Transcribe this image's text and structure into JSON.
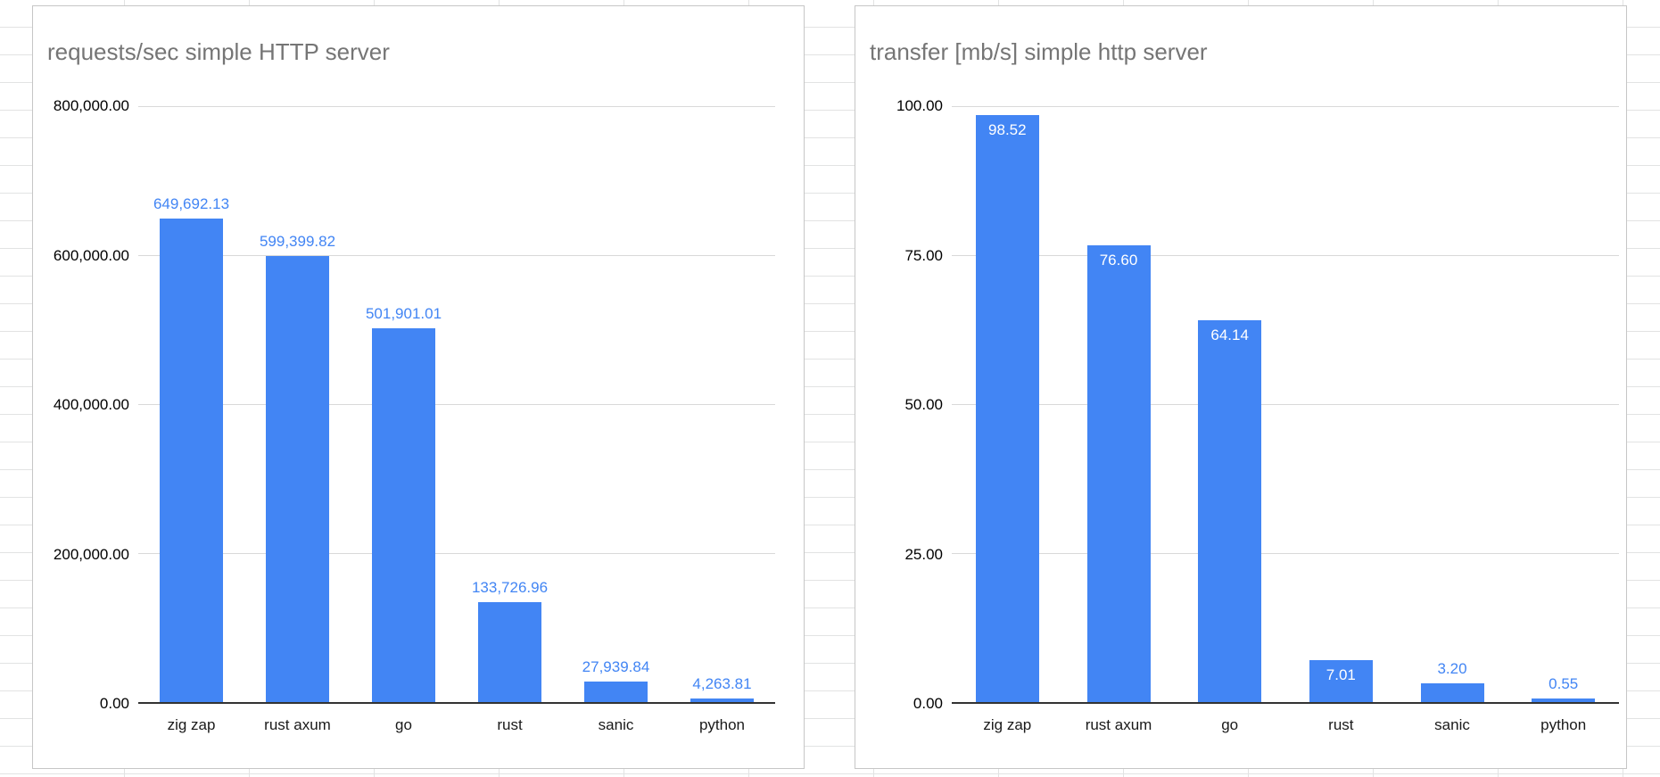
{
  "chart_data": [
    {
      "type": "bar",
      "title": "requests/sec simple HTTP server",
      "categories": [
        "zig zap",
        "rust axum",
        "go",
        "rust",
        "sanic",
        "python"
      ],
      "values": [
        649692.13,
        599399.82,
        501901.01,
        133726.96,
        27939.84,
        4263.81
      ],
      "value_labels": [
        "649,692.13",
        "599,399.82",
        "501,901.01",
        "133,726.96",
        "27,939.84",
        "4,263.81"
      ],
      "label_placement": [
        "above",
        "above",
        "above",
        "above",
        "above",
        "above"
      ],
      "ylim": [
        0,
        800000
      ],
      "y_ticks": [
        {
          "value": 800000,
          "label": "800,000.00"
        },
        {
          "value": 600000,
          "label": "600,000.00"
        },
        {
          "value": 400000,
          "label": "400,000.00"
        },
        {
          "value": 200000,
          "label": "200,000.00"
        },
        {
          "value": 0,
          "label": "0.00"
        }
      ],
      "xlabel": "",
      "ylabel": "",
      "grid": true,
      "legend": "none",
      "bar_color": "#4285f4",
      "label_color": "#4285f4"
    },
    {
      "type": "bar",
      "title": "transfer [mb/s] simple http server",
      "categories": [
        "zig zap",
        "rust axum",
        "go",
        "rust",
        "sanic",
        "python"
      ],
      "values": [
        98.52,
        76.6,
        64.14,
        7.01,
        3.2,
        0.55
      ],
      "value_labels": [
        "98.52",
        "76.60",
        "64.14",
        "7.01",
        "3.20",
        "0.55"
      ],
      "label_placement": [
        "inside",
        "inside",
        "inside",
        "inside",
        "above",
        "above"
      ],
      "ylim": [
        0,
        100
      ],
      "y_ticks": [
        {
          "value": 100,
          "label": "100.00"
        },
        {
          "value": 75,
          "label": "75.00"
        },
        {
          "value": 50,
          "label": "50.00"
        },
        {
          "value": 25,
          "label": "25.00"
        },
        {
          "value": 0,
          "label": "0.00"
        }
      ],
      "xlabel": "",
      "ylabel": "",
      "grid": true,
      "legend": "none",
      "bar_color": "#4285f4",
      "label_color": "#4285f4"
    }
  ]
}
